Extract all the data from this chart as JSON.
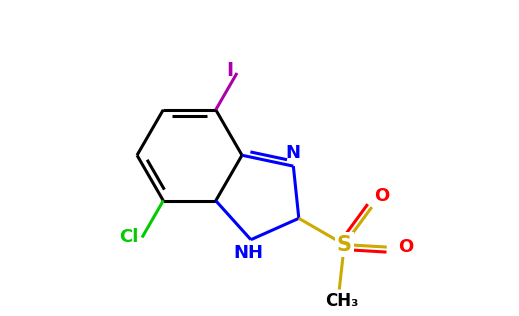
{
  "bg_color": "#ffffff",
  "bond_color": "#000000",
  "N_color": "#0000ff",
  "S_color": "#ccaa00",
  "O_color": "#ff0000",
  "Cl_color": "#00cc00",
  "I_color": "#aa00aa",
  "bond_width": 2.2,
  "figsize": [
    5.19,
    3.16
  ],
  "dpi": 100,
  "xlim": [
    0,
    10
  ],
  "ylim": [
    0,
    6.1
  ]
}
